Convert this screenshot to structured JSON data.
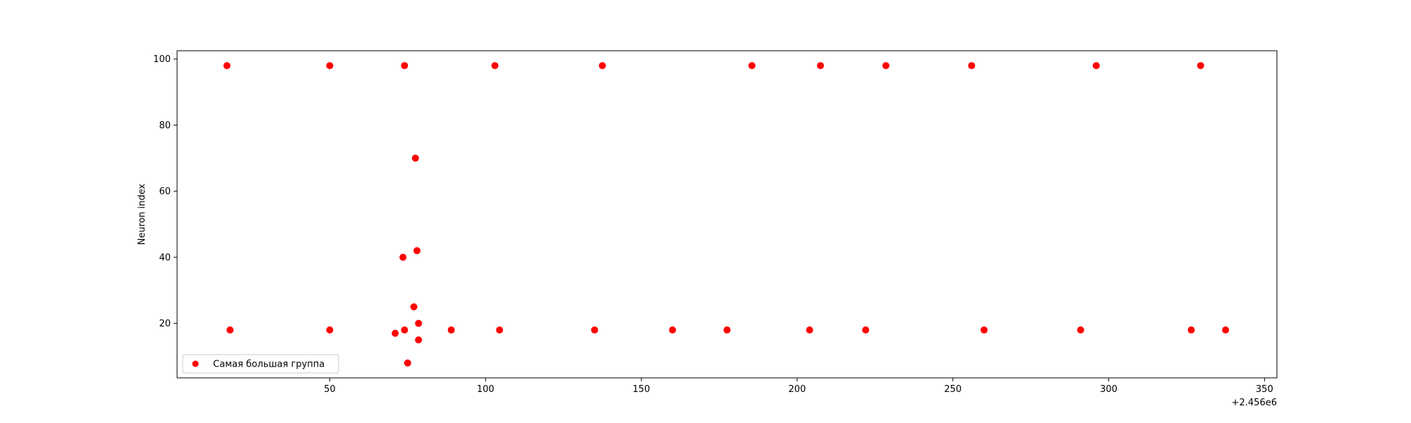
{
  "chart_data": {
    "type": "scatter",
    "title": "",
    "xlabel": "",
    "ylabel": "Neuron index",
    "x_offset_label": "+2.456e6",
    "xlim": [
      1,
      354
    ],
    "ylim": [
      3.5,
      102.5
    ],
    "x_ticks": [
      50,
      100,
      150,
      200,
      250,
      300,
      350
    ],
    "y_ticks": [
      20,
      40,
      60,
      80,
      100
    ],
    "grid": false,
    "legend_position": "lower-left",
    "series": [
      {
        "name": "Самая большая группа",
        "color": "#ff0000",
        "points": [
          [
            17,
            98
          ],
          [
            50,
            98
          ],
          [
            74,
            98
          ],
          [
            103,
            98
          ],
          [
            137.5,
            98
          ],
          [
            185.5,
            98
          ],
          [
            207.5,
            98
          ],
          [
            228.5,
            98
          ],
          [
            256,
            98
          ],
          [
            296,
            98
          ],
          [
            329.5,
            98
          ],
          [
            77.5,
            70
          ],
          [
            78,
            42
          ],
          [
            73.5,
            40
          ],
          [
            77,
            25
          ],
          [
            78.5,
            20
          ],
          [
            18,
            18
          ],
          [
            50,
            18
          ],
          [
            74,
            18
          ],
          [
            89,
            18
          ],
          [
            104.5,
            18
          ],
          [
            135,
            18
          ],
          [
            160,
            18
          ],
          [
            177.5,
            18
          ],
          [
            204,
            18
          ],
          [
            222,
            18
          ],
          [
            260,
            18
          ],
          [
            291,
            18
          ],
          [
            326.5,
            18
          ],
          [
            337.5,
            18
          ],
          [
            71,
            17
          ],
          [
            78.5,
            15
          ],
          [
            75,
            8
          ]
        ]
      }
    ]
  }
}
